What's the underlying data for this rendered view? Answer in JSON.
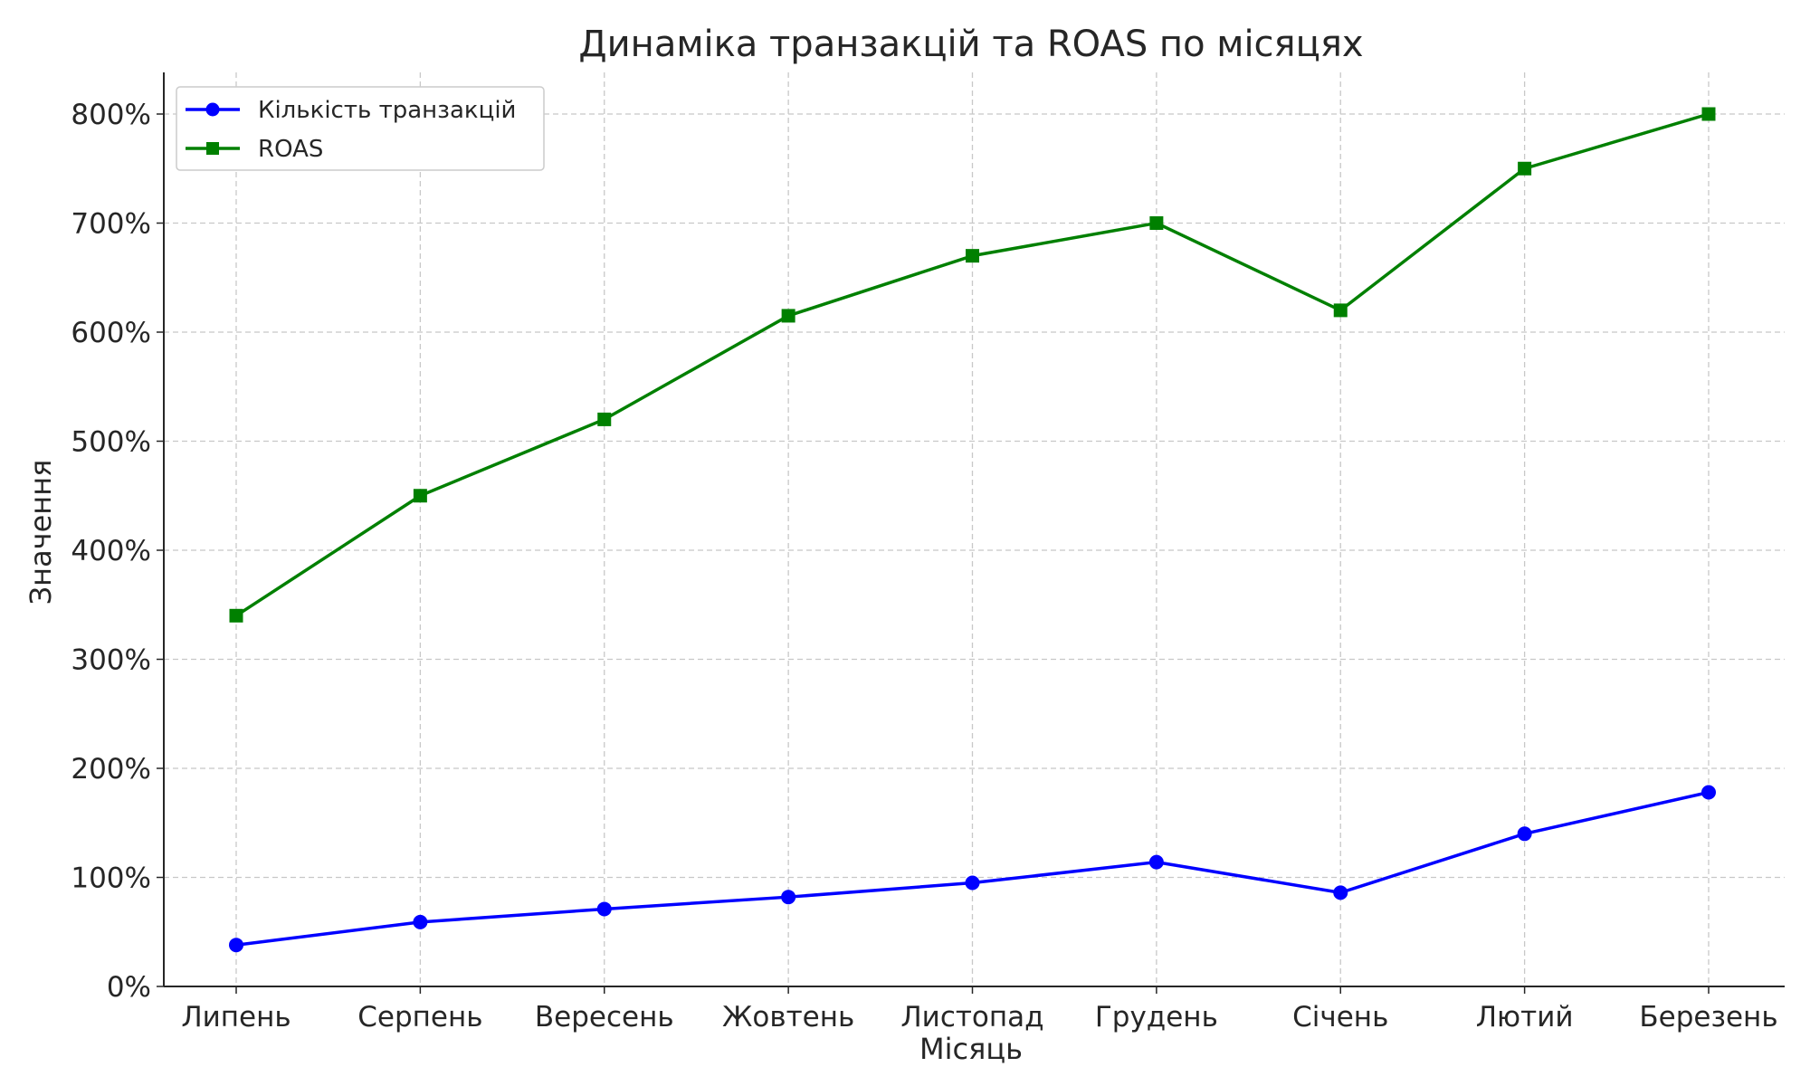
{
  "chart_data": {
    "type": "line",
    "title": "Динаміка транзакцій та ROAS по місяцях",
    "xlabel": "Місяць",
    "ylabel": "Значення",
    "categories": [
      "Липень",
      "Серпень",
      "Вересень",
      "Жовтень",
      "Листопад",
      "Грудень",
      "Січень",
      "Лютий",
      "Березень"
    ],
    "ylim": [
      0,
      800
    ],
    "yticks": [
      "0%",
      "100%",
      "200%",
      "300%",
      "400%",
      "500%",
      "600%",
      "700%",
      "800%"
    ],
    "grid": true,
    "legend_position": "top-left",
    "series": [
      {
        "name": "Кількість транзакцій",
        "color": "#0000ff",
        "marker": "circle",
        "values": [
          38,
          59,
          71,
          82,
          95,
          114,
          86,
          140,
          178
        ]
      },
      {
        "name": "ROAS",
        "color": "#008000",
        "marker": "square",
        "values": [
          340,
          450,
          520,
          615,
          670,
          700,
          620,
          750,
          800
        ]
      }
    ]
  }
}
